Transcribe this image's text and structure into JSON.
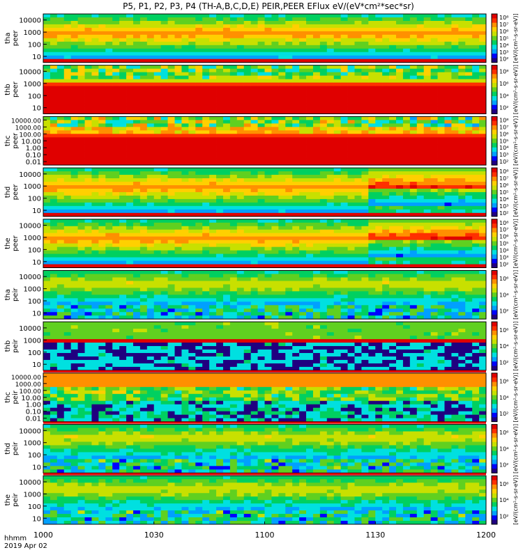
{
  "chart_data": {
    "type": "heatmap",
    "title": "P5, P1, P2, P3, P4 (TH-A,B,C,D,E) PEIR,PEER EFlux eV/(eV*cm²*sec*sr)",
    "x_label_left": [
      "hhmm",
      "2019 Apr 02"
    ],
    "x_ticks": [
      "1000",
      "1030",
      "1100",
      "1130",
      "1200"
    ],
    "x_range": [
      "10:00",
      "12:00"
    ],
    "panels": [
      {
        "name": "tha peer",
        "label_1": "tha",
        "label_2": "peer",
        "y_scale": "log",
        "y_range": [
          5,
          30000
        ],
        "y_ticks": [
          "10",
          "100",
          "1000",
          "10000"
        ],
        "cbar_ticks": [
          "10²",
          "10³",
          "10⁴",
          "10⁵",
          "10⁶",
          "10⁷",
          "10⁸"
        ],
        "cbar_label": "[eV/(cm²-s-sr-eV)]"
      },
      {
        "name": "thb peer",
        "label_1": "thb",
        "label_2": "peer",
        "y_scale": "log",
        "y_range": [
          5,
          30000
        ],
        "y_ticks": [
          "10",
          "100",
          "1000",
          "10000"
        ],
        "cbar_ticks": [
          "10²",
          "10⁴",
          "10⁶",
          "10⁸"
        ],
        "cbar_label": "[eV/(cm²-s-sr-eV)]"
      },
      {
        "name": "thc peer",
        "label_1": "thc",
        "label_2": "peer",
        "y_scale": "log",
        "y_range": [
          0.01,
          30000
        ],
        "y_ticks": [
          "0.01",
          "0.10",
          "1.00",
          "10.00",
          "100.00",
          "1000.00",
          "10000.00"
        ],
        "cbar_ticks": [
          "10²",
          "10³",
          "10⁴",
          "10⁵",
          "10⁶",
          "10⁷",
          "10⁸"
        ],
        "cbar_label": "[eV/(cm²-s-sr-eV)]"
      },
      {
        "name": "thd peer",
        "label_1": "thd",
        "label_2": "peer",
        "y_scale": "log",
        "y_range": [
          5,
          30000
        ],
        "y_ticks": [
          "10",
          "100",
          "1000",
          "10000"
        ],
        "cbar_ticks": [
          "10²",
          "10³",
          "10⁴",
          "10⁵",
          "10⁶",
          "10⁷",
          "10⁸"
        ],
        "cbar_label": "[eV/(cm²-s-sr-eV)]"
      },
      {
        "name": "the peer",
        "label_1": "the",
        "label_2": "peer",
        "y_scale": "log",
        "y_range": [
          5,
          30000
        ],
        "y_ticks": [
          "10",
          "100",
          "1000",
          "10000"
        ],
        "cbar_ticks": [
          "10²",
          "10³",
          "10⁴",
          "10⁵",
          "10⁶",
          "10⁷",
          "10⁸"
        ],
        "cbar_label": "[eV/(cm²-s-sr-eV)]"
      },
      {
        "name": "tha peir",
        "label_1": "tha",
        "label_2": "peir",
        "y_scale": "log",
        "y_range": [
          5,
          30000
        ],
        "y_ticks": [
          "10",
          "100",
          "1000",
          "10000"
        ],
        "cbar_ticks": [
          "10²",
          "10⁴",
          "10⁶"
        ],
        "cbar_label": "[eV/(cm²-s-sr-eV)]"
      },
      {
        "name": "thb peir",
        "label_1": "thb",
        "label_2": "peir",
        "y_scale": "log",
        "y_range": [
          5,
          30000
        ],
        "y_ticks": [
          "10",
          "100",
          "1000",
          "10000"
        ],
        "cbar_ticks": [
          "10²",
          "10⁴",
          "10⁶"
        ],
        "cbar_label": "[eV/(cm²-s-sr-eV)]"
      },
      {
        "name": "thc peir",
        "label_1": "thc",
        "label_2": "peir",
        "y_scale": "log",
        "y_range": [
          0.01,
          30000
        ],
        "y_ticks": [
          "0.01",
          "0.10",
          "1.00",
          "10.00",
          "100.00",
          "1000.00",
          "10000.00"
        ],
        "cbar_ticks": [
          "10²",
          "10⁴",
          "10⁶"
        ],
        "cbar_label": "[eV/(cm²-s-sr-eV)]"
      },
      {
        "name": "thd peir",
        "label_1": "thd",
        "label_2": "peir",
        "y_scale": "log",
        "y_range": [
          5,
          30000
        ],
        "y_ticks": [
          "10",
          "100",
          "1000",
          "10000"
        ],
        "cbar_ticks": [
          "10²",
          "10⁴",
          "10⁶"
        ],
        "cbar_label": "[eV/(cm²-s-sr-eV)]"
      },
      {
        "name": "the peir",
        "label_1": "the",
        "label_2": "peir",
        "y_scale": "log",
        "y_range": [
          5,
          30000
        ],
        "y_ticks": [
          "10",
          "100",
          "1000",
          "10000"
        ],
        "cbar_ticks": [
          "10²",
          "10⁴",
          "10⁶"
        ],
        "cbar_label": "[eV/(cm²-s-sr-eV)]"
      }
    ],
    "colormap": [
      "#200080",
      "#0000ff",
      "#00a0ff",
      "#00e0e0",
      "#00d060",
      "#60d020",
      "#c8e000",
      "#ffd000",
      "#ff9000",
      "#ff3000",
      "#e00000"
    ]
  }
}
